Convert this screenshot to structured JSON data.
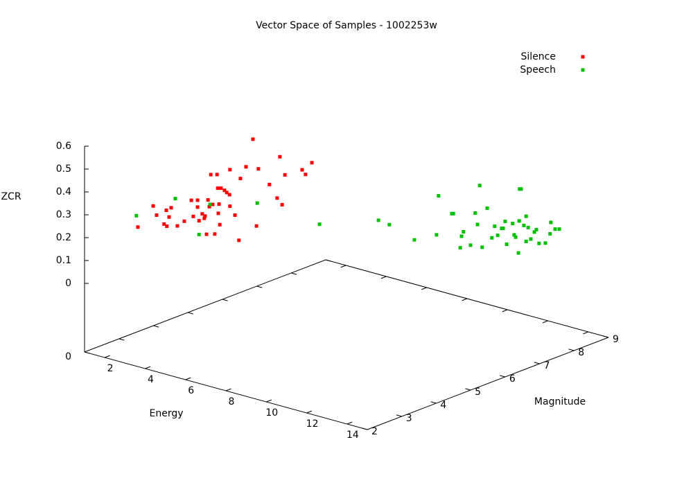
{
  "chart_data": {
    "type": "scatter3d",
    "title": "Vector Space of Samples - 1002253w",
    "xlabel": "Energy",
    "ylabel": "Magnitude",
    "zlabel": "ZCR",
    "xlim": [
      1,
      15
    ],
    "ylim": [
      2,
      9
    ],
    "zlim": [
      0,
      0.6
    ],
    "xticks": [
      2,
      4,
      6,
      8,
      10,
      12,
      14
    ],
    "yticks": [
      2,
      3,
      4,
      5,
      6,
      7,
      8,
      9
    ],
    "zticks": [
      0,
      0.1,
      0.2,
      0.3,
      0.4,
      0.5,
      0.6
    ],
    "zbase_tick": 0,
    "ticslevel": 0.5,
    "legend": "top right",
    "series": [
      {
        "name": "Silence",
        "color": "#ff0000",
        "x": [
          2.43,
          2.83,
          2.93,
          3.13,
          3.19,
          3.2,
          3.26,
          3.31,
          3.48,
          3.67,
          3.85,
          3.91,
          4.02,
          4.02,
          4.06,
          4.15,
          4.2,
          4.22,
          4.26,
          4.3,
          4.33,
          4.37,
          4.48,
          4.54,
          4.56,
          4.57,
          4.61,
          4.65,
          4.8,
          4.87,
          4.89,
          4.89,
          5.02,
          5.13,
          5.17,
          5.31,
          5.5,
          5.59,
          5.65,
          5.94,
          6.15,
          6.22,
          6.28,
          6.35,
          6.81,
          6.91,
          7.07,
          4.59,
          4.43,
          4.74
        ],
        "y": [
          2.71,
          2.92,
          2.96,
          3.06,
          3.09,
          3.1,
          3.13,
          3.16,
          3.24,
          3.33,
          3.43,
          3.45,
          3.51,
          3.51,
          3.53,
          3.57,
          3.6,
          3.61,
          3.63,
          3.65,
          3.67,
          3.69,
          3.74,
          3.77,
          3.78,
          3.79,
          3.81,
          3.82,
          3.9,
          3.94,
          3.94,
          3.94,
          4.01,
          4.06,
          4.08,
          4.16,
          4.25,
          4.3,
          4.32,
          4.47,
          4.57,
          4.61,
          4.64,
          4.68,
          4.91,
          4.95,
          5.04,
          3.8,
          3.71,
          3.87
        ],
        "z": [
          0.24,
          0.33,
          0.29,
          0.25,
          0.31,
          0.24,
          0.28,
          0.32,
          0.24,
          0.26,
          0.35,
          0.28,
          0.35,
          0.32,
          0.26,
          0.29,
          0.27,
          0.28,
          0.2,
          0.35,
          0.32,
          0.46,
          0.2,
          0.46,
          0.4,
          0.29,
          0.24,
          0.4,
          0.38,
          0.37,
          0.48,
          0.32,
          0.28,
          0.17,
          0.44,
          0.49,
          0.61,
          0.23,
          0.48,
          0.41,
          0.35,
          0.53,
          0.32,
          0.45,
          0.47,
          0.45,
          0.5,
          0.33,
          0.33,
          0.39
        ]
      },
      {
        "name": "Speech",
        "color": "#00c000",
        "x": [
          2.39,
          3.43,
          4.06,
          4.35,
          5.61,
          7.28,
          8.85,
          9.15,
          9.81,
          10.41,
          10.46,
          10.81,
          10.85,
          11.04,
          11.07,
          11.13,
          11.31,
          11.44,
          11.5,
          11.56,
          11.63,
          11.76,
          11.89,
          11.96,
          12.04,
          12.15,
          12.19,
          12.24,
          12.28,
          12.44,
          12.48,
          12.52,
          12.59,
          12.61,
          12.63,
          12.67,
          12.74,
          12.8,
          12.8,
          12.85,
          12.93,
          13.02,
          13.07,
          13.15,
          13.31,
          13.44,
          13.46,
          13.57,
          13.69
        ],
        "y": [
          2.69,
          3.21,
          3.53,
          3.68,
          4.31,
          5.14,
          5.93,
          6.07,
          6.41,
          6.7,
          6.73,
          6.91,
          6.93,
          7.02,
          7.04,
          7.06,
          7.16,
          7.22,
          7.25,
          7.28,
          7.31,
          7.38,
          7.44,
          7.48,
          7.52,
          7.57,
          7.59,
          7.62,
          7.64,
          7.72,
          7.74,
          7.76,
          7.8,
          7.81,
          7.81,
          7.83,
          7.87,
          7.9,
          7.9,
          7.93,
          7.96,
          8.01,
          8.04,
          8.07,
          8.16,
          8.22,
          8.23,
          8.29,
          8.34
        ],
        "z": [
          0.29,
          0.36,
          0.2,
          0.33,
          0.33,
          0.23,
          0.24,
          0.22,
          0.15,
          0.17,
          0.34,
          0.26,
          0.26,
          0.11,
          0.16,
          0.18,
          0.12,
          0.26,
          0.21,
          0.38,
          0.11,
          0.28,
          0.15,
          0.2,
          0.16,
          0.19,
          0.19,
          0.22,
          0.12,
          0.21,
          0.16,
          0.15,
          0.08,
          0.22,
          0.36,
          0.36,
          0.2,
          0.13,
          0.24,
          0.19,
          0.14,
          0.17,
          0.18,
          0.12,
          0.12,
          0.16,
          0.21,
          0.18,
          0.18
        ]
      }
    ]
  }
}
